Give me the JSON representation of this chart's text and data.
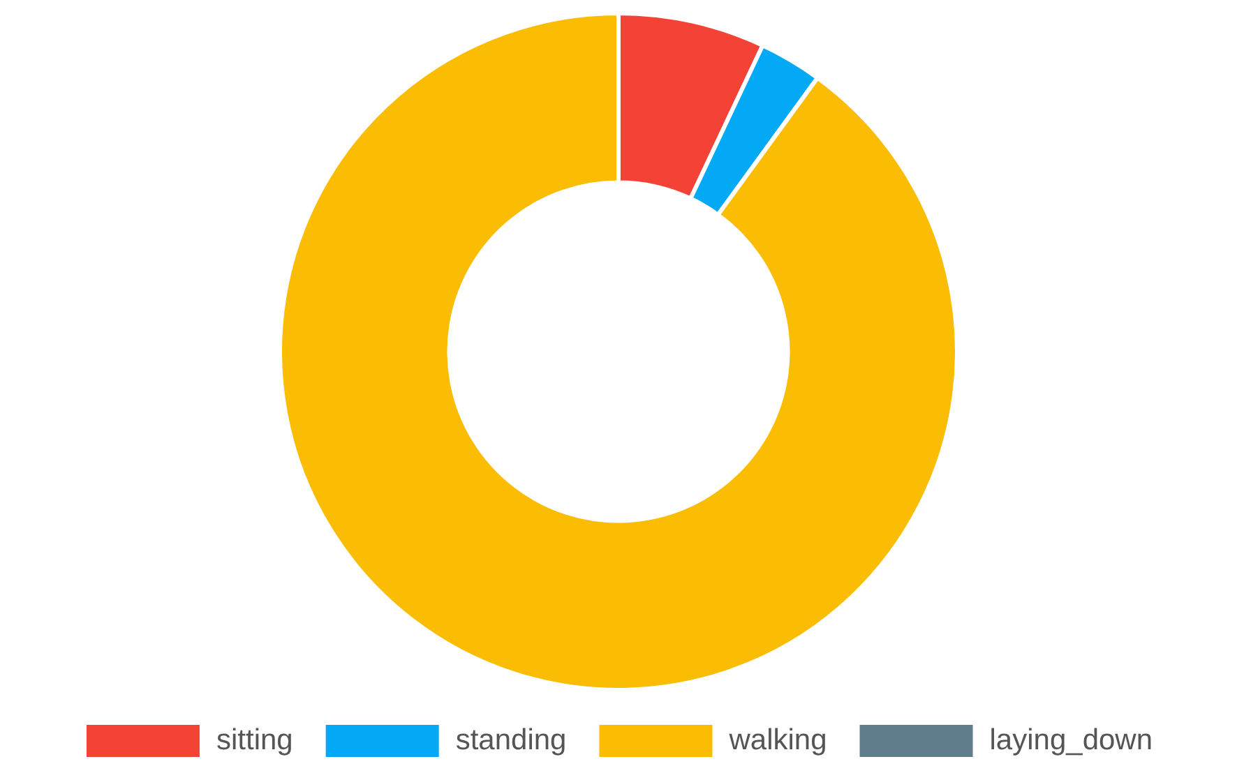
{
  "chart_data": {
    "type": "donut",
    "categories": [
      "sitting",
      "standing",
      "walking",
      "laying_down"
    ],
    "values": [
      7,
      3,
      90,
      0
    ],
    "colors": [
      "#f44336",
      "#03a9f4",
      "#fbbc04",
      "#607d8b"
    ],
    "legend": "bottom"
  }
}
